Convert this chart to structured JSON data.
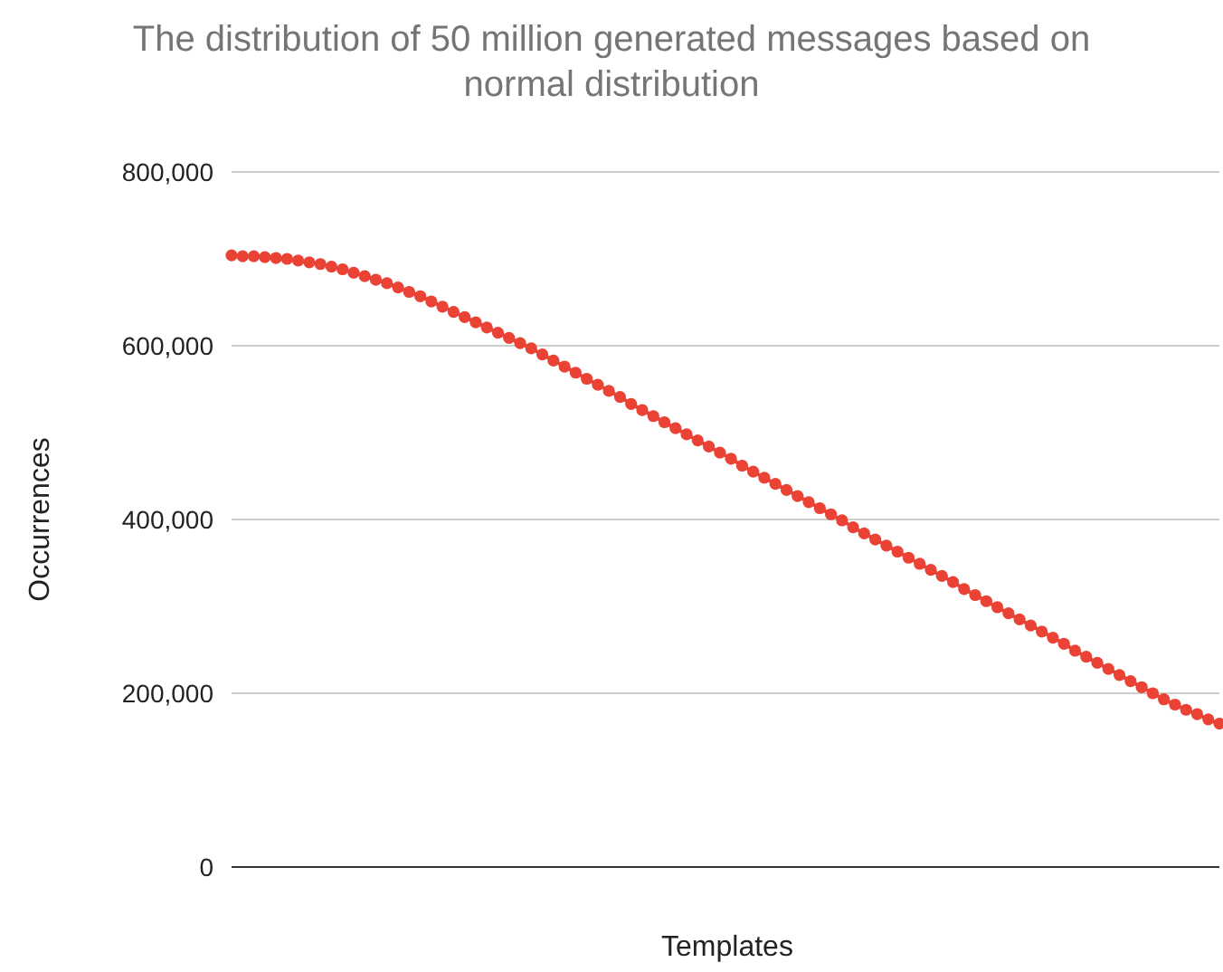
{
  "chart_data": {
    "type": "line",
    "title": "The distribution of 50 million generated messages based on normal distribution",
    "xlabel": "Templates",
    "ylabel": "Occurrences",
    "categories": [
      null,
      null,
      null,
      null,
      null,
      null,
      null,
      null,
      null,
      null,
      null,
      null,
      null,
      null,
      null,
      null,
      null,
      null,
      null,
      null,
      null,
      null,
      null,
      null,
      null,
      null,
      null,
      null,
      null,
      null,
      null,
      null,
      null,
      null,
      null,
      null,
      null,
      null,
      null,
      null,
      null,
      null,
      null,
      null,
      null,
      null,
      null,
      null,
      null,
      null,
      null,
      null,
      null,
      null,
      null,
      null,
      null,
      null,
      null,
      null,
      null,
      null,
      null,
      null,
      null,
      null,
      null,
      null,
      null,
      null,
      null,
      null,
      null,
      null,
      null,
      null,
      null,
      null,
      null,
      null,
      null,
      null,
      null,
      null,
      null,
      null,
      null,
      null,
      null,
      null
    ],
    "series": [
      {
        "color": "#ea4335",
        "values": [
          704000,
          703000,
          703000,
          702000,
          701000,
          700000,
          698000,
          696000,
          694000,
          691000,
          688000,
          684000,
          680000,
          676000,
          672000,
          667000,
          662000,
          657000,
          651000,
          645000,
          639000,
          633000,
          627000,
          621000,
          615000,
          609000,
          603000,
          597000,
          590000,
          583000,
          576000,
          569000,
          562000,
          555000,
          548000,
          541000,
          533000,
          526000,
          519000,
          512000,
          505000,
          498000,
          491000,
          484000,
          477000,
          470000,
          462000,
          455000,
          448000,
          441000,
          434000,
          427000,
          420000,
          413000,
          406000,
          399000,
          391000,
          384000,
          377000,
          370000,
          363000,
          356000,
          349000,
          342000,
          335000,
          328000,
          320000,
          313000,
          306000,
          299000,
          292000,
          285000,
          278000,
          271000,
          264000,
          257000,
          249000,
          242000,
          235000,
          228000,
          221000,
          214000,
          207000,
          200000,
          193000,
          187000,
          181000,
          176000,
          170000,
          165000
        ]
      }
    ],
    "ylim": [
      0,
      800000
    ],
    "yticks": [
      {
        "value": 0,
        "label": "0"
      },
      {
        "value": 200000,
        "label": "200,000"
      },
      {
        "value": 400000,
        "label": "400,000"
      },
      {
        "value": 600000,
        "label": "600,000"
      },
      {
        "value": 800000,
        "label": "800,000"
      }
    ],
    "grid": "y",
    "marker": "circle",
    "line_style": "solid"
  }
}
